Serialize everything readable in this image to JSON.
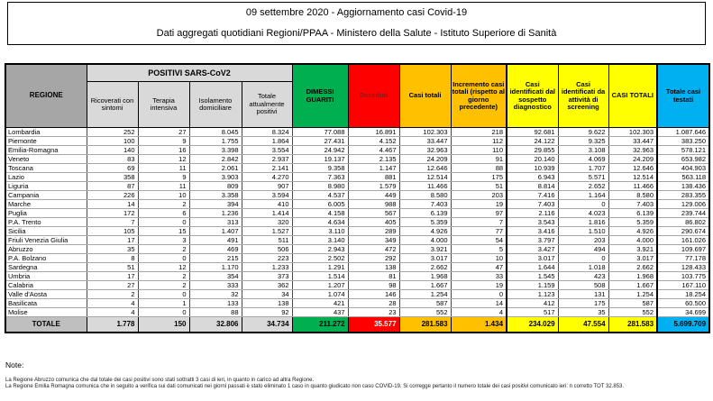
{
  "title": {
    "line1": "09 settembre 2020 - Aggiornamento casi Covid-19",
    "line2": "Dati aggregati quotidiani Regioni/PPAA - Ministero della Salute - Istituto Superiore di Sanità"
  },
  "table": {
    "header": {
      "regione": "REGIONE",
      "positivi_group": "POSITIVI SARS-CoV2",
      "sub": [
        "Ricoverati con sintomi",
        "Terapia intensiva",
        "Isolamento domiciliare",
        "Totale attualmente positivi"
      ],
      "dimessi": "DIMESSI GUARITI",
      "deceduti": "Deceduti",
      "casi_totali": "Casi totali",
      "incremento": "Incremento casi totali (rispetto al giorno precedente)",
      "sospetto": "Casi identificati dal sospetto diagnostico",
      "screening": "Casi identificati da attività di screening",
      "casi_totali_caps": "CASI TOTALI",
      "testati": "Totale casi testati"
    },
    "rows": [
      {
        "region": "Lombardia",
        "values": [
          "252",
          "27",
          "8.045",
          "8.324",
          "77.088",
          "16.891",
          "102.303",
          "218",
          "92.681",
          "9.622",
          "102.303",
          "1.087.646"
        ]
      },
      {
        "region": "Piemonte",
        "values": [
          "100",
          "9",
          "1.755",
          "1.864",
          "27.431",
          "4.152",
          "33.447",
          "112",
          "24.122",
          "9.325",
          "33.447",
          "383.250"
        ]
      },
      {
        "region": "Emilia-Romagna",
        "values": [
          "140",
          "16",
          "3.398",
          "3.554",
          "24.942",
          "4.467",
          "32.963",
          "110",
          "29.855",
          "3.108",
          "32.963",
          "578.121"
        ]
      },
      {
        "region": "Veneto",
        "values": [
          "83",
          "12",
          "2.842",
          "2.937",
          "19.137",
          "2.135",
          "24.209",
          "91",
          "20.140",
          "4.069",
          "24.209",
          "653.982"
        ]
      },
      {
        "region": "Toscana",
        "values": [
          "69",
          "11",
          "2.061",
          "2.141",
          "9.358",
          "1.147",
          "12.646",
          "88",
          "10.939",
          "1.707",
          "12.646",
          "404.903"
        ]
      },
      {
        "region": "Lazio",
        "values": [
          "358",
          "9",
          "3.903",
          "4.270",
          "7.363",
          "881",
          "12.514",
          "175",
          "6.943",
          "5.571",
          "12.514",
          "563.118"
        ]
      },
      {
        "region": "Liguria",
        "values": [
          "87",
          "11",
          "809",
          "907",
          "8.980",
          "1.579",
          "11.466",
          "51",
          "8.814",
          "2.652",
          "11.466",
          "138.436"
        ]
      },
      {
        "region": "Campania",
        "values": [
          "226",
          "10",
          "3.358",
          "3.594",
          "4.537",
          "449",
          "8.580",
          "203",
          "7.416",
          "1.164",
          "8.580",
          "283.355"
        ]
      },
      {
        "region": "Marche",
        "values": [
          "14",
          "2",
          "394",
          "410",
          "6.005",
          "988",
          "7.403",
          "19",
          "7.403",
          "0",
          "7.403",
          "129.006"
        ]
      },
      {
        "region": "Puglia",
        "values": [
          "172",
          "6",
          "1.236",
          "1.414",
          "4.158",
          "567",
          "6.139",
          "97",
          "2.116",
          "4.023",
          "6.139",
          "239.744"
        ]
      },
      {
        "region": "P.A. Trento",
        "values": [
          "7",
          "0",
          "313",
          "320",
          "4.634",
          "405",
          "5.359",
          "7",
          "3.543",
          "1.816",
          "5.359",
          "86.802"
        ]
      },
      {
        "region": "Sicilia",
        "values": [
          "105",
          "15",
          "1.407",
          "1.527",
          "3.110",
          "289",
          "4.926",
          "77",
          "3.416",
          "1.510",
          "4.926",
          "290.674"
        ]
      },
      {
        "region": "Friuli Venezia Giulia",
        "values": [
          "17",
          "3",
          "491",
          "511",
          "3.140",
          "349",
          "4.000",
          "54",
          "3.797",
          "203",
          "4.000",
          "161.026"
        ]
      },
      {
        "region": "Abruzzo",
        "values": [
          "35",
          "2",
          "469",
          "506",
          "2.943",
          "472",
          "3.921",
          "5",
          "3.427",
          "494",
          "3.921",
          "109.697"
        ]
      },
      {
        "region": "P.A. Bolzano",
        "values": [
          "8",
          "0",
          "215",
          "223",
          "2.502",
          "292",
          "3.017",
          "10",
          "3.017",
          "0",
          "3.017",
          "77.178"
        ]
      },
      {
        "region": "Sardegna",
        "values": [
          "51",
          "12",
          "1.170",
          "1.233",
          "1.291",
          "138",
          "2.662",
          "47",
          "1.644",
          "1.018",
          "2.662",
          "128.433"
        ]
      },
      {
        "region": "Umbria",
        "values": [
          "17",
          "2",
          "354",
          "373",
          "1.514",
          "81",
          "1.968",
          "33",
          "1.545",
          "423",
          "1.968",
          "103.775"
        ]
      },
      {
        "region": "Calabria",
        "values": [
          "27",
          "2",
          "333",
          "362",
          "1.207",
          "98",
          "1.667",
          "19",
          "1.159",
          "508",
          "1.667",
          "167.110"
        ]
      },
      {
        "region": "Valle d'Aosta",
        "values": [
          "2",
          "0",
          "32",
          "34",
          "1.074",
          "146",
          "1.254",
          "0",
          "1.123",
          "131",
          "1.254",
          "18.254"
        ]
      },
      {
        "region": "Basilicata",
        "values": [
          "4",
          "1",
          "133",
          "138",
          "421",
          "28",
          "587",
          "14",
          "412",
          "175",
          "587",
          "60.500"
        ]
      },
      {
        "region": "Molise",
        "values": [
          "4",
          "0",
          "88",
          "92",
          "437",
          "23",
          "552",
          "4",
          "517",
          "35",
          "552",
          "34.699"
        ]
      }
    ],
    "total": {
      "label": "TOTALE",
      "values": [
        "1.778",
        "150",
        "32.806",
        "34.734",
        "211.272",
        "35.577",
        "281.583",
        "1.434",
        "234.029",
        "47.554",
        "281.583",
        "5.699.709"
      ]
    }
  },
  "notes": {
    "label": "Note:",
    "lines": [
      "La Regione Abruzzo comunica che dal totale dei casi positivi sono stati sottratti 3 casi di ieri, in quanto in carico ad altra Regione.",
      "La Regione Emilia Romagna comunica che in seguito a verifica sui dati comunicati nei giorni passati è stato eliminato 1 caso in quanto giudicato non caso COVID-19. Si corregge pertanto il numero totale dei casi positivi comunicato ieri: n corretto TOT 32.853."
    ]
  },
  "colors": {
    "green": "#00b050",
    "red": "#ff0000",
    "orange": "#ffc000",
    "yellow": "#ffff00",
    "cyan": "#00b0f0",
    "header-gray": "#a6a6a6",
    "light-gray": "#d9d9d9",
    "total-gray": "#bfbfbf",
    "deceduti-text": "#7f1d1d"
  }
}
